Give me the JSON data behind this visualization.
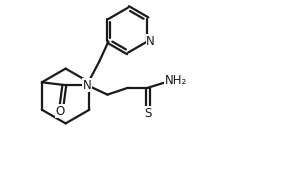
{
  "background": "#ffffff",
  "line_color": "#1a1a1a",
  "line_width": 1.6,
  "font_size_labels": 8.5,
  "coords": {
    "xlim": [
      0,
      10.5
    ],
    "ylim": [
      0,
      7.0
    ]
  }
}
